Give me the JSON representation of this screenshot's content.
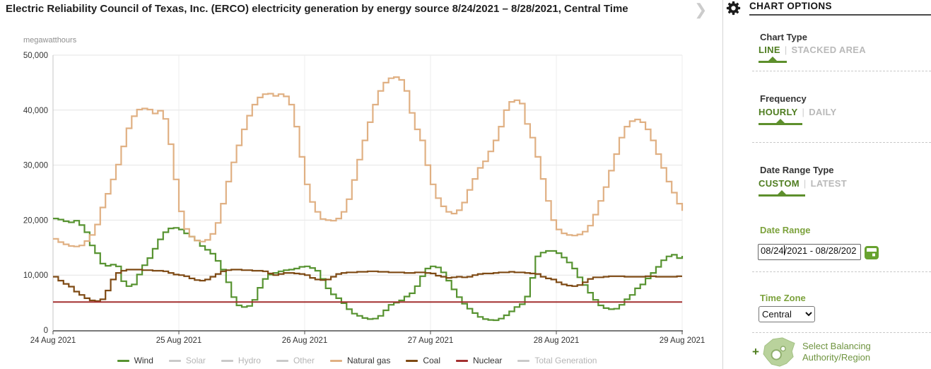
{
  "header": {
    "title": "Electric Reliability Council of Texas, Inc. (ERCO) electricity generation by energy source 8/24/2021 – 8/28/2021, Central Time"
  },
  "chart": {
    "unit_label": "megawatthours",
    "legend": {
      "items": [
        {
          "label": "Wind",
          "color": "#579331",
          "active": true
        },
        {
          "label": "Solar",
          "color": "#c9c9c9",
          "active": false
        },
        {
          "label": "Hydro",
          "color": "#c9c9c9",
          "active": false
        },
        {
          "label": "Other",
          "color": "#c9c9c9",
          "active": false
        },
        {
          "label": "Natural gas",
          "color": "#e0b083",
          "active": true
        },
        {
          "label": "Coal",
          "color": "#7e4a14",
          "active": true
        },
        {
          "label": "Nuclear",
          "color": "#a33030",
          "active": true
        },
        {
          "label": "Total Generation",
          "color": "#c9c9c9",
          "active": false
        }
      ]
    }
  },
  "chart_data": {
    "type": "line",
    "title": "Electric Reliability Council of Texas, Inc. (ERCO) electricity generation by energy source 8/24/2021 – 8/28/2021, Central Time",
    "ylabel": "megawatthours",
    "frequency": "hourly",
    "x_axis": {
      "total_hours": 120,
      "tick_labels": [
        "24 Aug 2021",
        "25 Aug 2021",
        "26 Aug 2021",
        "27 Aug 2021",
        "28 Aug 2021",
        "29 Aug 2021"
      ],
      "grid": true
    },
    "y_axis": {
      "min": 0,
      "max": 50000,
      "tick_interval": 10000,
      "tick_labels": [
        "0",
        "10,000",
        "20,000",
        "30,000",
        "40,000",
        "50,000"
      ],
      "grid": true
    },
    "hidden_series": [
      "Solar",
      "Hydro",
      "Other",
      "Total Generation"
    ],
    "series": [
      {
        "name": "Wind",
        "color": "#579331",
        "values": [
          20300,
          20100,
          19800,
          19600,
          19900,
          19100,
          17800,
          15400,
          14000,
          12100,
          11700,
          11900,
          11600,
          8900,
          8000,
          8300,
          10100,
          11800,
          13100,
          14800,
          16500,
          17800,
          18500,
          18600,
          18300,
          17600,
          17000,
          16300,
          15300,
          14600,
          13900,
          12600,
          11000,
          8700,
          6000,
          4500,
          4200,
          4400,
          5500,
          7700,
          9300,
          10100,
          10400,
          10700,
          10900,
          11000,
          11200,
          11500,
          11600,
          11300,
          10800,
          9300,
          7600,
          6500,
          5800,
          4900,
          3800,
          3000,
          2600,
          2200,
          2000,
          2100,
          2600,
          3600,
          4600,
          5000,
          5400,
          6100,
          6700,
          8000,
          9800,
          11200,
          11600,
          11400,
          10500,
          9000,
          7400,
          6000,
          4800,
          3900,
          3100,
          2400,
          2000,
          1850,
          1800,
          2100,
          2700,
          3400,
          4200,
          4700,
          6100,
          9500,
          13400,
          14100,
          14400,
          14400,
          14000,
          13200,
          12300,
          11200,
          9600,
          8200,
          6800,
          5500,
          4500,
          4000,
          3800,
          3900,
          4600,
          5600,
          6400,
          7600,
          8300,
          9400,
          10400,
          11500,
          12700,
          13400,
          13700,
          13100,
          13500
        ]
      },
      {
        "name": "Natural gas",
        "color": "#e0b083",
        "values": [
          16600,
          16000,
          15600,
          15300,
          15200,
          15400,
          16200,
          17300,
          19200,
          22300,
          24800,
          27400,
          30100,
          33400,
          36700,
          38900,
          40100,
          40300,
          40100,
          39400,
          39900,
          38400,
          33800,
          27400,
          21600,
          18400,
          17000,
          16300,
          16100,
          16400,
          17500,
          19500,
          23000,
          27000,
          30500,
          33600,
          36500,
          39000,
          41000,
          42300,
          42900,
          43000,
          42600,
          42900,
          42500,
          41000,
          37000,
          31500,
          26500,
          23300,
          21500,
          20200,
          20000,
          19900,
          20300,
          21500,
          23800,
          27300,
          31000,
          34500,
          37800,
          41000,
          43500,
          45000,
          45800,
          46000,
          45500,
          43500,
          39500,
          36500,
          34500,
          30000,
          26500,
          24000,
          22500,
          21500,
          21200,
          21800,
          23200,
          25500,
          27500,
          29500,
          30700,
          32500,
          34500,
          37000,
          40000,
          41500,
          41800,
          41200,
          37500,
          35000,
          31500,
          27500,
          23500,
          20000,
          18300,
          17600,
          17300,
          17200,
          17400,
          17900,
          19000,
          21000,
          23500,
          26000,
          29000,
          32000,
          35000,
          37000,
          38000,
          38300,
          37800,
          36500,
          34500,
          32000,
          29500,
          27000,
          25000,
          23000,
          21700
        ]
      },
      {
        "name": "Coal",
        "color": "#7e4a14",
        "values": [
          9700,
          9000,
          8400,
          7900,
          7000,
          6400,
          5800,
          5400,
          5300,
          5600,
          7200,
          9200,
          10400,
          10800,
          11000,
          11000,
          11000,
          10900,
          10900,
          10800,
          10800,
          10700,
          10400,
          10100,
          10000,
          9800,
          9400,
          9100,
          9000,
          9200,
          9700,
          10200,
          10700,
          10900,
          11000,
          11000,
          10900,
          10900,
          10800,
          10800,
          10700,
          10300,
          10000,
          10200,
          10400,
          10400,
          10300,
          10200,
          10000,
          9500,
          9200,
          9100,
          9200,
          9700,
          10200,
          10400,
          10500,
          10500,
          10600,
          10600,
          10700,
          10700,
          10600,
          10600,
          10500,
          10500,
          10500,
          10400,
          10400,
          10500,
          10500,
          10400,
          10300,
          9900,
          9700,
          9500,
          9600,
          9700,
          9600,
          9700,
          10000,
          10200,
          10300,
          10300,
          10400,
          10500,
          10500,
          10600,
          10500,
          10500,
          10400,
          10300,
          10200,
          9700,
          9400,
          9200,
          8700,
          8300,
          8100,
          8000,
          8200,
          8700,
          9300,
          9600,
          9600,
          9700,
          9800,
          9800,
          9800,
          9700,
          9700,
          9700,
          9700,
          9800,
          9800,
          9700,
          9700,
          9700,
          9700,
          9800,
          9800
        ]
      },
      {
        "name": "Nuclear",
        "color": "#a33030",
        "constant": 5100
      }
    ]
  },
  "options_panel": {
    "heading": "CHART OPTIONS",
    "collapse_glyph": "❯",
    "sections": {
      "chart_type": {
        "label": "Chart Type",
        "options": [
          "LINE",
          "STACKED AREA"
        ],
        "selected": "LINE"
      },
      "frequency": {
        "label": "Frequency",
        "options": [
          "HOURLY",
          "DAILY"
        ],
        "selected": "HOURLY"
      },
      "date_range_type": {
        "label": "Date Range Type",
        "options": [
          "CUSTOM",
          "LATEST"
        ],
        "selected": "CUSTOM"
      },
      "date_range": {
        "label": "Date Range",
        "value": "08/24/2021 - 08/28/202",
        "caret_after": "08/24"
      },
      "time_zone": {
        "label": "Time Zone",
        "selected": "Central",
        "options": [
          "Central"
        ]
      },
      "balancing_authority": {
        "plus": "+",
        "line1": "Select Balancing",
        "line2": "Authority/Region"
      }
    }
  }
}
